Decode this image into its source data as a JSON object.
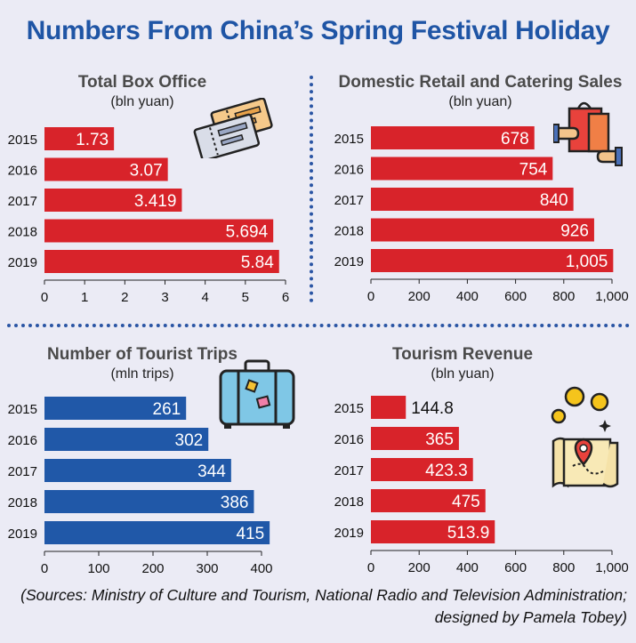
{
  "title": "Numbers From China’s Spring Festival Holiday",
  "sources": {
    "line1": "(Sources: Ministry of Culture and Tourism,  National Radio and Television Administration;",
    "line2": "designed by Pamela Tobey)"
  },
  "colors": {
    "red": "#d8232a",
    "blue": "#2058a8",
    "title": "#1f55a5"
  },
  "icons": [
    "tickets-icon",
    "shopping-bag-icon",
    "suitcase-icon",
    "map-pin-icon"
  ],
  "chart_data": [
    {
      "type": "bar",
      "orientation": "horizontal",
      "title": "Total Box Office",
      "unit": "(bln yuan)",
      "categories": [
        "2015",
        "2016",
        "2017",
        "2018",
        "2019"
      ],
      "values": [
        1.73,
        3.07,
        3.419,
        5.694,
        5.84
      ],
      "value_labels": [
        "1.73",
        "3.07",
        "3.419",
        "5.694",
        "5.84"
      ],
      "xlim": [
        0,
        6
      ],
      "ticks": [
        "0",
        "1",
        "2",
        "3",
        "4",
        "5",
        "6"
      ],
      "color": "#d8232a"
    },
    {
      "type": "bar",
      "orientation": "horizontal",
      "title": "Domestic Retail and Catering Sales",
      "unit": "(bln yuan)",
      "categories": [
        "2015",
        "2016",
        "2017",
        "2018",
        "2019"
      ],
      "values": [
        678,
        754,
        840,
        926,
        1005
      ],
      "value_labels": [
        "678",
        "754",
        "840",
        "926",
        "1,005"
      ],
      "xlim": [
        0,
        1000
      ],
      "ticks": [
        "0",
        "200",
        "400",
        "600",
        "800",
        "1,000"
      ],
      "color": "#d8232a"
    },
    {
      "type": "bar",
      "orientation": "horizontal",
      "title": "Number of Tourist Trips",
      "unit": "(mln trips)",
      "categories": [
        "2015",
        "2016",
        "2017",
        "2018",
        "2019"
      ],
      "values": [
        261,
        302,
        344,
        386,
        415
      ],
      "value_labels": [
        "261",
        "302",
        "344",
        "386",
        "415"
      ],
      "xlim": [
        0,
        400
      ],
      "ticks": [
        "0",
        "100",
        "200",
        "300",
        "400"
      ],
      "color": "#2058a8"
    },
    {
      "type": "bar",
      "orientation": "horizontal",
      "title": "Tourism Revenue",
      "unit": "(bln yuan)",
      "categories": [
        "2015",
        "2016",
        "2017",
        "2018",
        "2019"
      ],
      "values": [
        144.8,
        365,
        423.3,
        475,
        513.9
      ],
      "value_labels": [
        "144.8",
        "365",
        "423.3",
        "475",
        "513.9"
      ],
      "xlim": [
        0,
        1000
      ],
      "ticks": [
        "0",
        "200",
        "400",
        "600",
        "800",
        "1,000"
      ],
      "color": "#d8232a"
    }
  ]
}
